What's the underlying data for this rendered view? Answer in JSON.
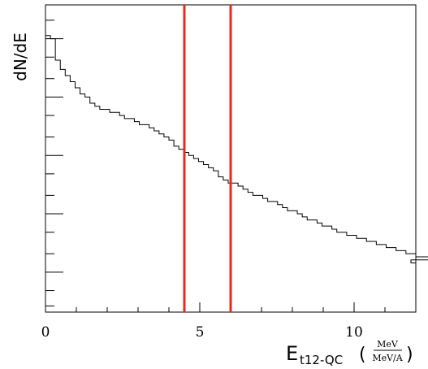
{
  "chart_data": {
    "type": "histogram",
    "ylabel": "dN/dE",
    "xlabel": {
      "main": "E",
      "subscript": "t12-QC",
      "paren_open": "(",
      "frac_num": "MeV",
      "frac_den": "MeV/A",
      "paren_close": ")"
    },
    "xlim": [
      0,
      12
    ],
    "x_ticks": [
      {
        "value": 0,
        "label": "0"
      },
      {
        "value": 5,
        "label": "5"
      },
      {
        "value": 10,
        "label": "10"
      }
    ],
    "bin_width": 0.16,
    "values": [
      90,
      89,
      82,
      79,
      77,
      75,
      73,
      71,
      70,
      68,
      67,
      66,
      66,
      65,
      65,
      64,
      63,
      63,
      62,
      61,
      61,
      60,
      59,
      58,
      57,
      56,
      54,
      53,
      52,
      51,
      50,
      49,
      48,
      47,
      46,
      44,
      43,
      42,
      42,
      41,
      40,
      39,
      38,
      38,
      37,
      36,
      36,
      35,
      34,
      33,
      33,
      32,
      31,
      30,
      30,
      29,
      28,
      28,
      27,
      26,
      26,
      25,
      25,
      24,
      24,
      23,
      23,
      22,
      22,
      21,
      21,
      20,
      20,
      19,
      19,
      18,
      18,
      18,
      17
    ],
    "ylim": [
      0,
      100
    ],
    "cut_lines": [
      {
        "x": 4.5,
        "color": "#e8281c"
      },
      {
        "x": 6.0,
        "color": "#e8281c"
      }
    ],
    "frame_color": "#000000",
    "line_color": "#000000"
  }
}
